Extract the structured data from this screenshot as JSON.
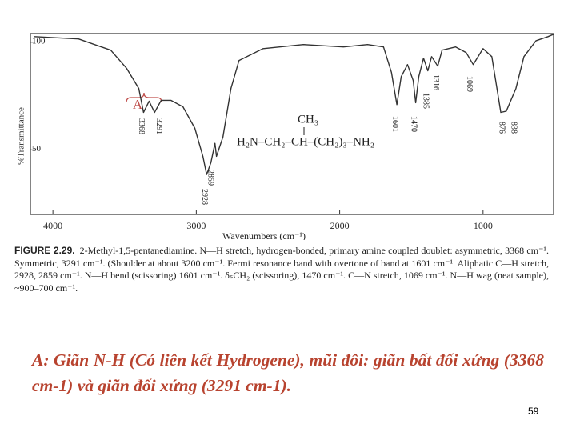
{
  "chart_data": {
    "type": "line",
    "x": [
      4129,
      3821,
      3597,
      3485,
      3401,
      3368,
      3329,
      3291,
      3245,
      3177,
      3093,
      3010,
      2954,
      2928,
      2898,
      2870,
      2859,
      2814,
      2758,
      2702,
      2534,
      2254,
      1974,
      1806,
      1694,
      1639,
      1601,
      1571,
      1527,
      1487,
      1470,
      1448,
      1415,
      1385,
      1359,
      1316,
      1286,
      1191,
      1118,
      1069,
      1000,
      939,
      876,
      838,
      771,
      715,
      631,
      547,
      508
    ],
    "values": [
      102.6,
      101.5,
      96.3,
      87.8,
      78.5,
      67.4,
      72.6,
      67.4,
      73,
      73,
      70,
      60,
      47,
      38.5,
      44,
      53,
      47,
      56,
      78.5,
      91.5,
      97,
      98.9,
      97.8,
      98.9,
      97.8,
      86,
      71,
      84,
      89.6,
      82.2,
      71.9,
      84,
      92.6,
      86.7,
      93.3,
      88.9,
      96.3,
      97.8,
      95.2,
      89.6,
      97,
      93.3,
      67.4,
      68,
      78.5,
      93.3,
      100.7,
      102.6,
      103.7
    ],
    "color": "#333333",
    "xlim": [
      4157,
      508
    ],
    "xticks": [
      4000,
      3000,
      2000,
      1000
    ],
    "ylim": [
      20,
      104
    ],
    "yticks": [
      50,
      100
    ],
    "x_label": "Wavenumbers (cm⁻¹)",
    "y_label": "%Transmittance",
    "peak_labels": [
      {
        "value": 3368,
        "label": "3368"
      },
      {
        "value": 3291,
        "label": "3291"
      },
      {
        "value": 2859,
        "label": "2859"
      },
      {
        "value": 2928,
        "label": "2928"
      },
      {
        "value": 1601,
        "label": "1601"
      },
      {
        "value": 1470,
        "label": "1470"
      },
      {
        "value": 1385,
        "label": "1385"
      },
      {
        "value": 1316,
        "label": "1316"
      },
      {
        "value": 1069,
        "label": "1069"
      },
      {
        "value": 876,
        "label": "876"
      },
      {
        "value": 838,
        "label": "838"
      }
    ],
    "annotations": [
      "A",
      "CH₃",
      "H₂N–CH₂–CH–(CH₂)₃–NH₂"
    ]
  },
  "caption": {
    "label": "FIGURE 2.29.",
    "text": "2-Methyl-1,5-pentanediamine. N—H stretch, hydrogen-bonded, primary amine coupled doublet: asymmetric, 3368 cm⁻¹. Symmetric, 3291 cm⁻¹. (Shoulder at about 3200 cm⁻¹. Fermi resonance band with overtone of band at 1601 cm⁻¹. Aliphatic C—H stretch, 2928, 2859 cm⁻¹. N—H bend (scissoring) 1601 cm⁻¹. δₛCH₂ (scissoring), 1470 cm⁻¹. C—N stretch, 1069 cm⁻¹. N—H wag (neat sample), ~900–700 cm⁻¹."
  },
  "note": "A: Giãn N-H (Có liên kết Hydrogene), mũi đôi: giãn bất đối xứng (3368 cm-1) và giãn đối xứng (3291 cm-1).",
  "page_number": "59"
}
